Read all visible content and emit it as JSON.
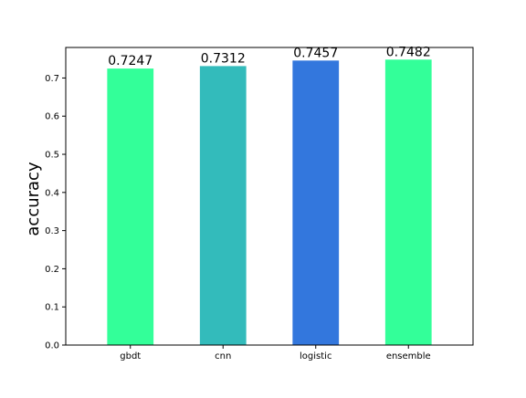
{
  "chart_data": {
    "type": "bar",
    "title": "",
    "xlabel": "",
    "ylabel": "accuracy",
    "ylim": [
      0,
      0.78
    ],
    "yticks": [
      0.0,
      0.1,
      0.2,
      0.3,
      0.4,
      0.5,
      0.6,
      0.7
    ],
    "ytick_labels": [
      "0.0",
      "0.1",
      "0.2",
      "0.3",
      "0.4",
      "0.5",
      "0.6",
      "0.7"
    ],
    "categories": [
      "gbdt",
      "cnn",
      "logistic",
      "ensemble"
    ],
    "values": [
      0.7247,
      0.7312,
      0.7457,
      0.7482
    ],
    "value_labels": [
      "0.7247",
      "0.7312",
      "0.7457",
      "0.7482"
    ],
    "colors": [
      "#33ff99",
      "#33bbbb",
      "#3377dd",
      "#33ff99"
    ],
    "grid": false,
    "legend": "none"
  }
}
